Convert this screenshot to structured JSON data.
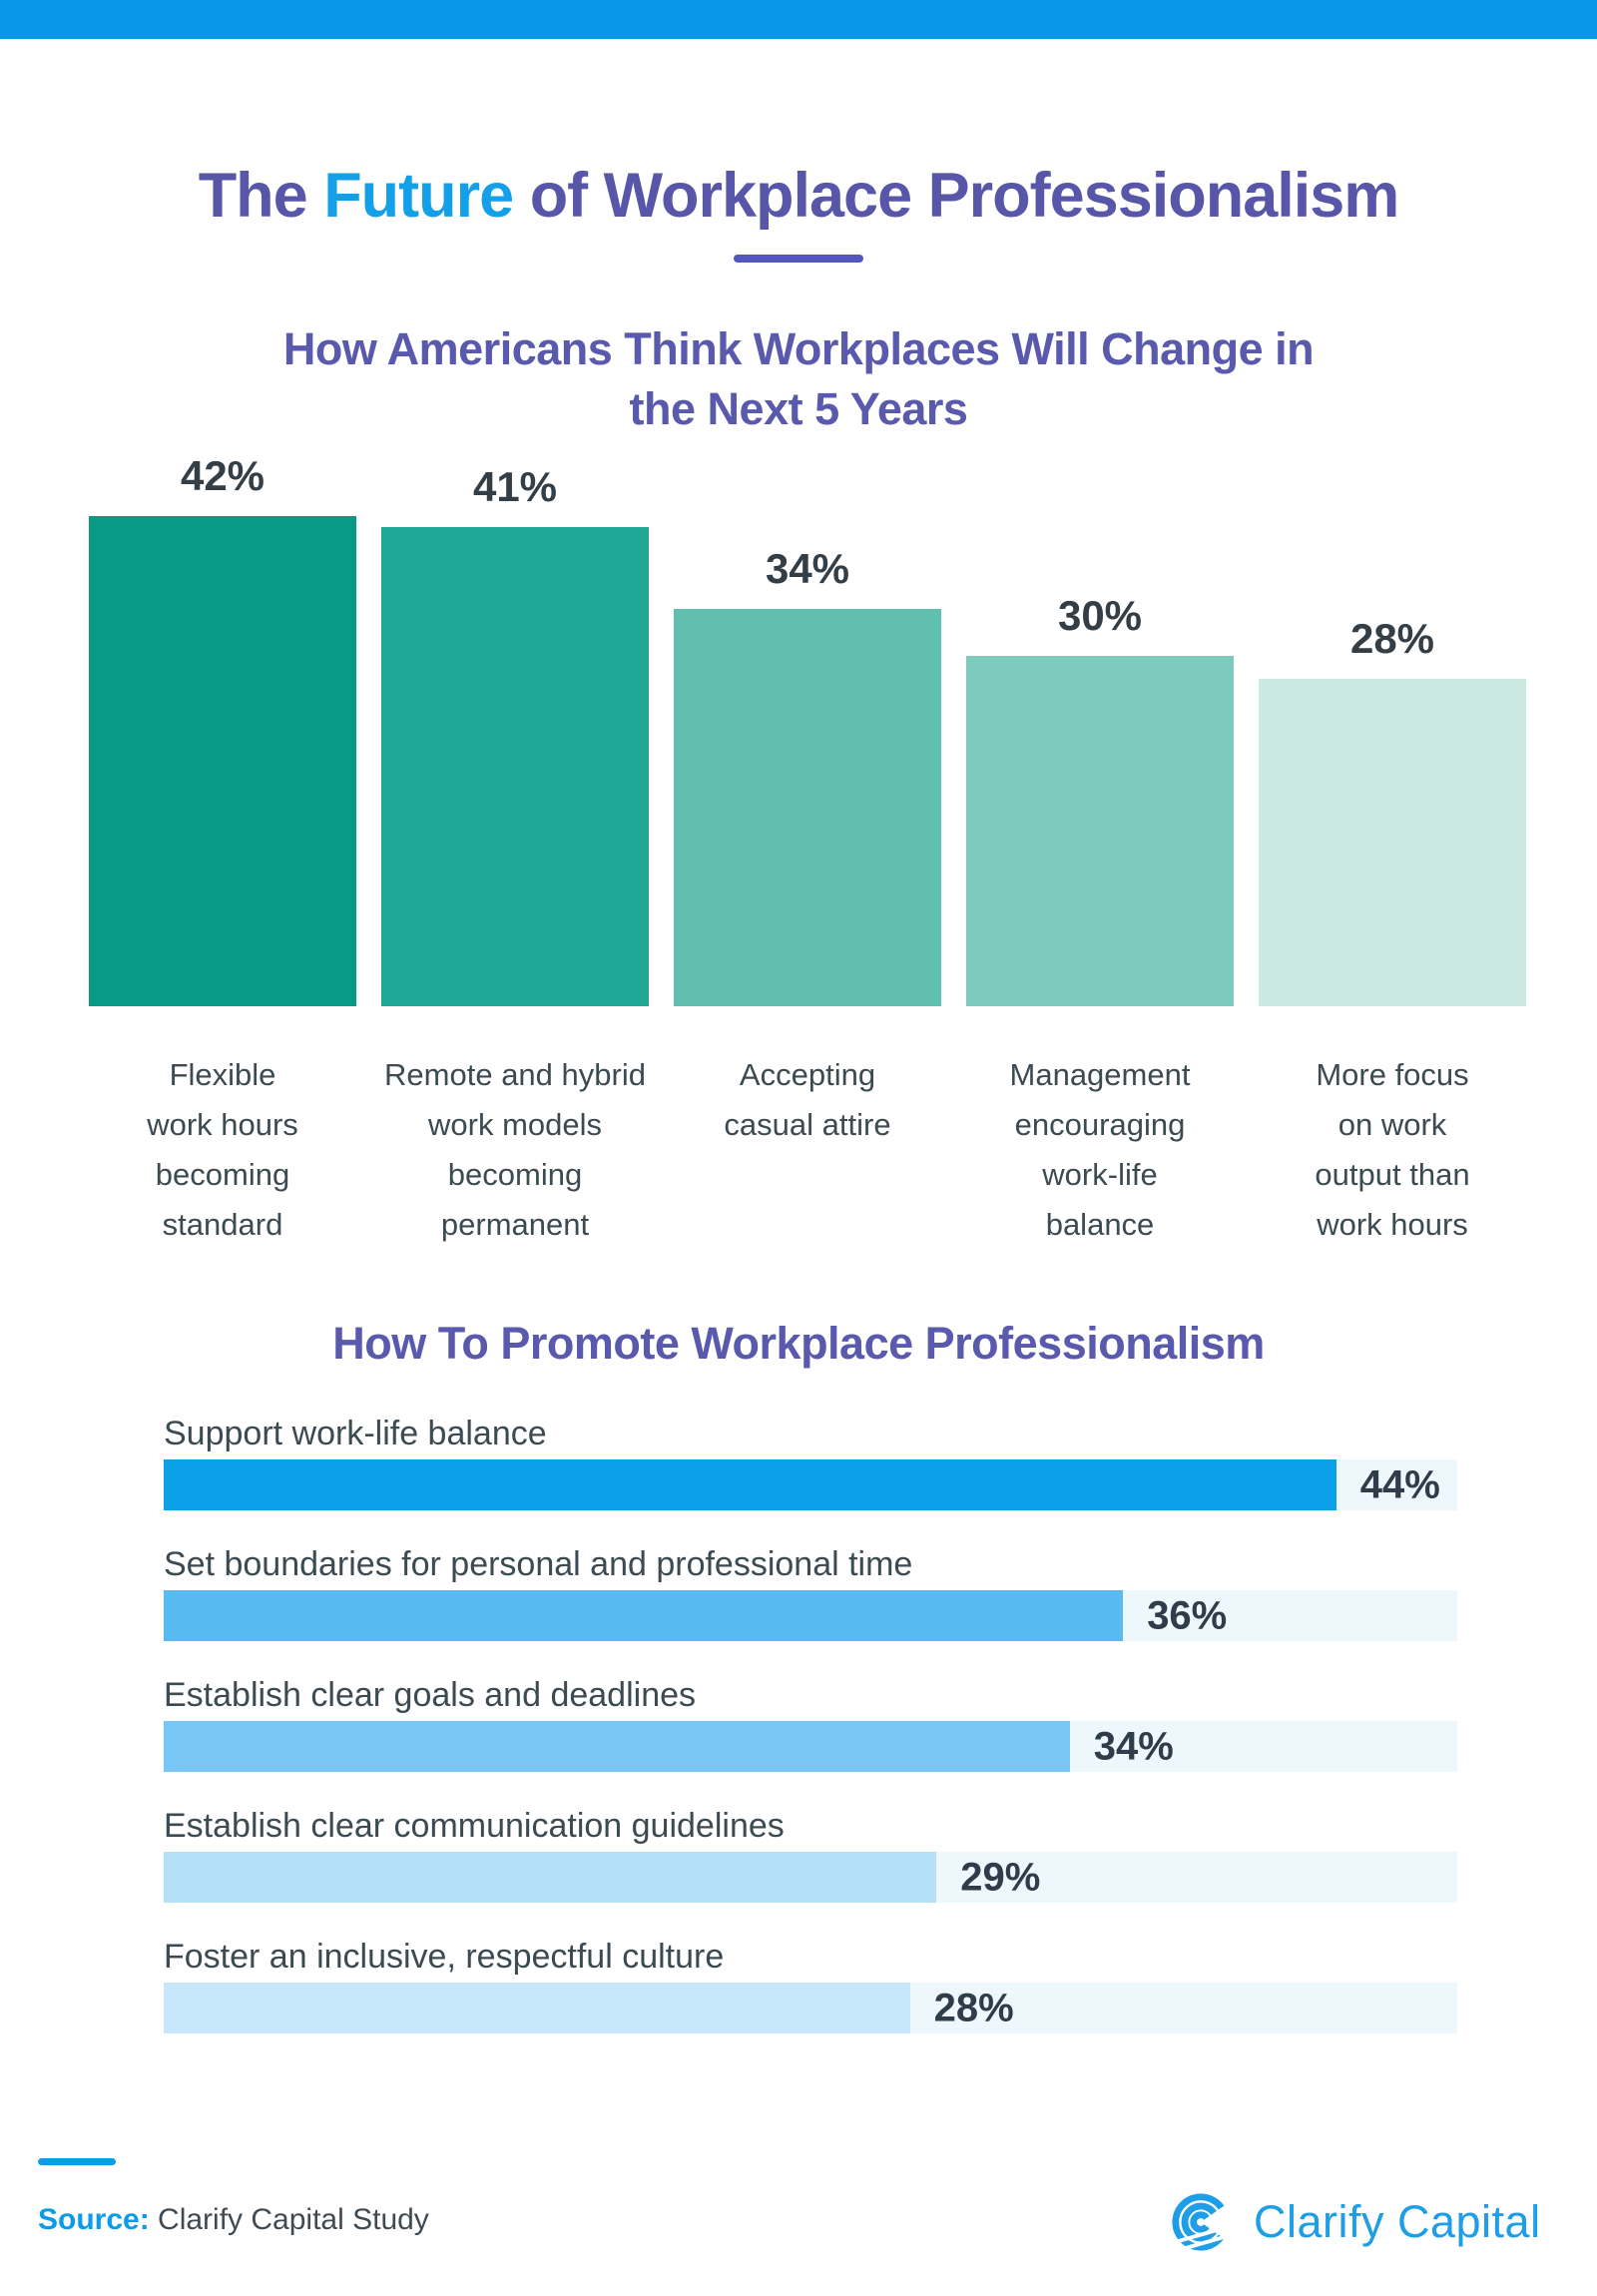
{
  "page": {
    "topbar_color": "#0998E9",
    "accent_blue": "#0C9BE8",
    "heading_purple": "#5959AE"
  },
  "header": {
    "title_prefix": "The ",
    "title_highlight": "Future",
    "title_suffix": " of Workplace Professionalism",
    "title_color": "#5756A8",
    "highlight_color": "#14A0E9",
    "divider_color": "#5556BE"
  },
  "chart_data": [
    {
      "type": "bar",
      "orientation": "vertical",
      "title": "How Americans Think Workplaces Will Change in the Next 5 Years",
      "title_line1": "How Americans Think Workplaces Will Change in",
      "title_line2": "the Next 5 Years",
      "categories": [
        "Flexible work hours becoming standard",
        "Remote and hybrid work models becoming permanent",
        "Accepting casual attire",
        "Management encouraging work-life balance",
        "More focus on work output than work hours"
      ],
      "category_lines": [
        [
          "Flexible",
          "work hours",
          "becoming",
          "standard"
        ],
        [
          "Remote and hybrid",
          "work models",
          "becoming",
          "permanent"
        ],
        [
          "Accepting",
          "casual attire"
        ],
        [
          "Management",
          "encouraging",
          "work-life",
          "balance"
        ],
        [
          "More focus",
          "on work",
          "output than",
          "work hours"
        ]
      ],
      "values": [
        42,
        41,
        34,
        30,
        28
      ],
      "value_labels": [
        "42%",
        "41%",
        "34%",
        "30%",
        "28%"
      ],
      "bar_colors": [
        "#079B85",
        "#21A795",
        "#61BFB0",
        "#7ECABD",
        "#CCE9E1"
      ],
      "grid": false,
      "legend": false,
      "ylim": [
        0,
        47
      ]
    },
    {
      "type": "bar",
      "orientation": "horizontal",
      "title": "How To Promote Workplace Professionalism",
      "categories": [
        "Support work-life balance",
        "Set boundaries for personal and professional time",
        "Establish clear goals and deadlines",
        "Establish clear communication guidelines",
        "Foster an inclusive, respectful culture"
      ],
      "values": [
        44,
        36,
        34,
        29,
        28
      ],
      "value_labels": [
        "44%",
        "36%",
        "34%",
        "29%",
        "28%"
      ],
      "bar_colors": [
        "#0CA0E8",
        "#57BAF0",
        "#77C6F3",
        "#B4E0F8",
        "#C6E8FA"
      ],
      "track_color": "#EEF7FC",
      "grid": false,
      "legend": false,
      "xlim": [
        0,
        48.5
      ]
    }
  ],
  "footer": {
    "source_prefix": "Source:",
    "source_text": " Clarify Capital Study",
    "logo_text": "Clarify Capital",
    "logo_color": "#1E9DE9"
  }
}
